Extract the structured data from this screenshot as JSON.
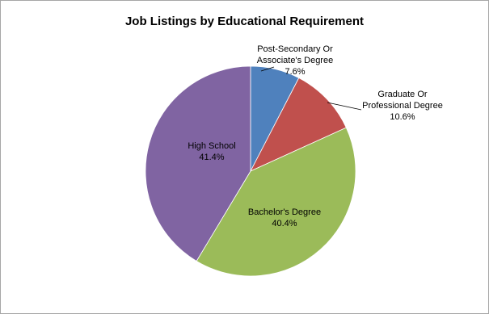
{
  "chart_data": {
    "type": "pie",
    "title": "Job Listings by Educational Requirement",
    "slices": [
      {
        "label_lines": [
          "Post-Secondary Or",
          "Associate's Degree"
        ],
        "value": 7.6,
        "value_label": "7.6%",
        "color": "#4f81bd"
      },
      {
        "label_lines": [
          "Graduate Or",
          "Professional Degree"
        ],
        "value": 10.6,
        "value_label": "10.6%",
        "color": "#c0504d"
      },
      {
        "label_lines": [
          "Bachelor's Degree"
        ],
        "value": 40.4,
        "value_label": "40.4%",
        "color": "#9bbb59"
      },
      {
        "label_lines": [
          "High School"
        ],
        "value": 41.4,
        "value_label": "41.4%",
        "color": "#8064a2"
      }
    ],
    "start_angle": "12 o'clock",
    "direction": "clockwise",
    "legend": "none"
  }
}
